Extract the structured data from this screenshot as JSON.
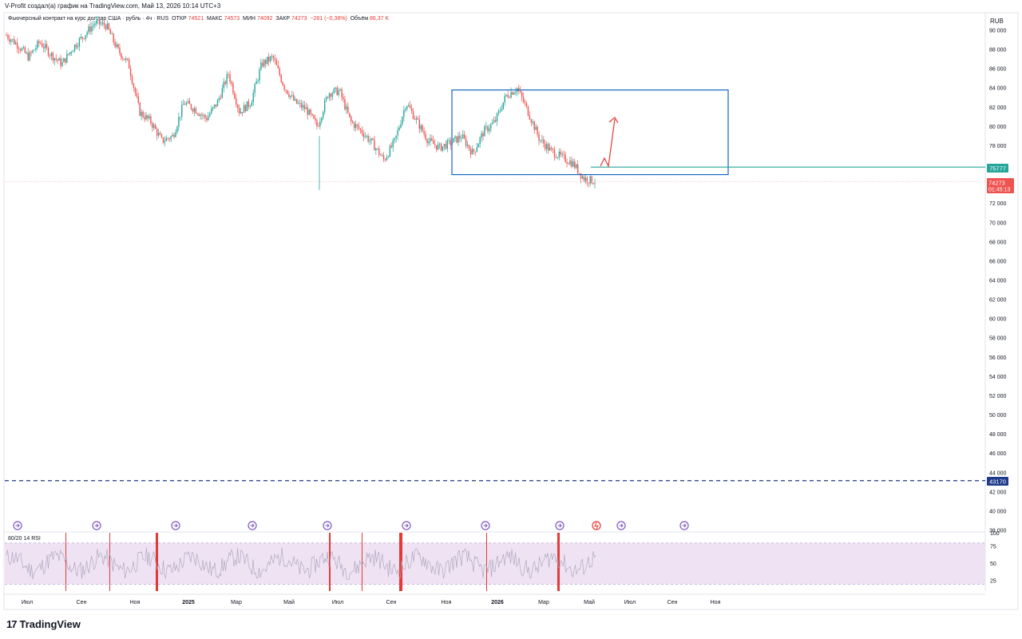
{
  "header": {
    "attribution": "V-Profit создал(а) график на TradingView.com, Май 13, 2026 10:14 UTC+3",
    "instrument": "Фьючерсный контракт на курс доллар США · рубль · 4ч · RUS",
    "open_label": "ОТКР",
    "open_value": "74521",
    "high_label": "МАКС",
    "high_value": "74573",
    "low_label": "МИН",
    "low_value": "74092",
    "close_label": "ЗАКР",
    "close_value": "74273",
    "change": "−281 (−0,38%)",
    "volume_label": "Объём",
    "volume_value": "86,37 K",
    "currency": "RUB"
  },
  "price_tags": {
    "level_value": "75777",
    "level_color": "#26a69a",
    "last_value": "74273",
    "last_timer": "01:45:13",
    "last_color": "#ef5350",
    "support_value": "43170",
    "support_color": "#1e3a8a"
  },
  "rsi": {
    "label": "80/20 14 RSI",
    "ticks": [
      "75",
      "50",
      "25"
    ],
    "upper": 80,
    "lower": 20
  },
  "footer": {
    "logo_mark": "17",
    "logo_text": "TradingView"
  },
  "chart_data": {
    "type": "line",
    "series": [
      {
        "values": [
          89500,
          88500,
          87200,
          88800,
          87500,
          86500,
          88200,
          89500,
          90800,
          90500,
          88000,
          86500,
          81500,
          80500,
          78500,
          79000,
          82500,
          81800,
          80800,
          82500,
          85500,
          81500,
          82500,
          86500,
          87200,
          84200,
          82500,
          81800,
          80000,
          83500,
          83700,
          80500,
          79500,
          78200,
          76500,
          78500,
          82500,
          80500,
          78500,
          77800,
          78300,
          79000,
          77200,
          79500,
          80500,
          83200,
          84000,
          81500,
          78700,
          77500,
          76800,
          76200,
          74600,
          74300
        ]
      }
    ],
    "x_labels": [
      "Июл",
      "Сен",
      "Ноя",
      "2025",
      "Мар",
      "Май",
      "Июл",
      "Сен",
      "Ноя",
      "2026",
      "Мар",
      "Май",
      "Июл",
      "Сен",
      "Ноя"
    ],
    "y_ticks": [
      90000,
      88000,
      86000,
      84000,
      82000,
      80000,
      78000,
      76000,
      74000,
      72000,
      70000,
      68000,
      66000,
      64000,
      62000,
      60000,
      58000,
      56000,
      54000,
      52000,
      50000,
      48000,
      46000,
      44000,
      42000,
      40000,
      38000
    ],
    "y_tick_labels": [
      "90 000",
      "88 000",
      "86 000",
      "84 000",
      "82 000",
      "80 000",
      "78 000",
      "",
      "",
      "72 000",
      "70 000",
      "68 000",
      "66 000",
      "64 000",
      "62 000",
      "60 000",
      "58 000",
      "56 000",
      "54 000",
      "52 000",
      "50 000",
      "48 000",
      "46 000",
      "44 000",
      "42 000",
      "40 000",
      "38 000"
    ],
    "ylim": [
      38000,
      90500
    ],
    "range_box": {
      "top": 83800,
      "bottom": 75000
    },
    "level": 75777,
    "last": 74273,
    "support": 43170,
    "up_color": "#26a69a",
    "down_color": "#ef5350",
    "box_color": "#1565c0",
    "arrow_color": "#e53935"
  }
}
